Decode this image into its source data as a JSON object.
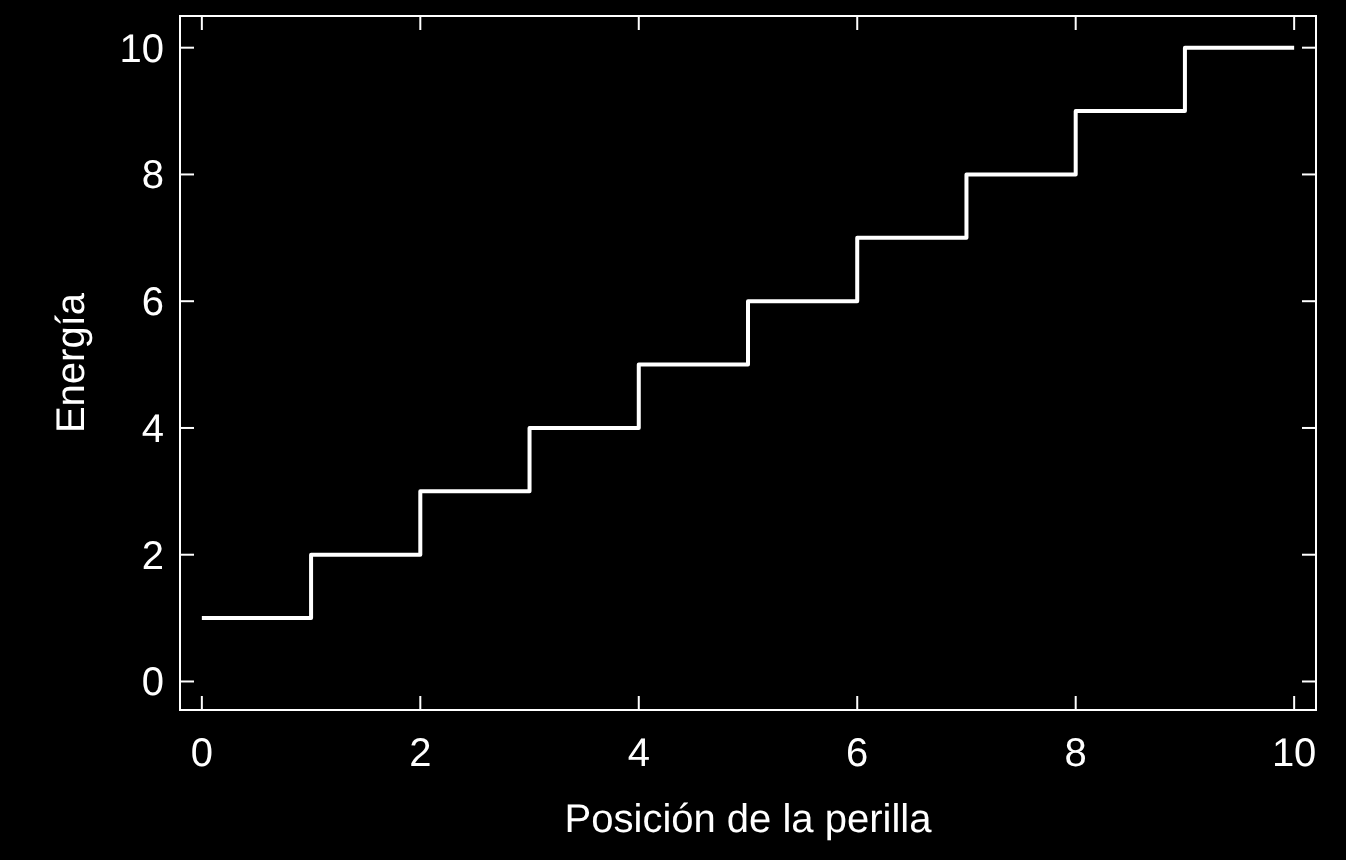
{
  "chart_data": {
    "type": "step",
    "xlabel": "Posición de la perilla",
    "ylabel": "Energía",
    "x": [
      0,
      1,
      2,
      3,
      4,
      5,
      6,
      7,
      8,
      9,
      10
    ],
    "series": [
      {
        "color": "#ffffff",
        "values": [
          1,
          2,
          3,
          4,
          5,
          6,
          7,
          8,
          9,
          10,
          10
        ]
      }
    ],
    "xlim": [
      -0.2,
      10.2
    ],
    "ylim": [
      -0.45,
      10.5
    ],
    "xticks": [
      0,
      2,
      4,
      6,
      8,
      10
    ],
    "yticks": [
      0,
      2,
      4,
      6,
      8,
      10
    ]
  }
}
